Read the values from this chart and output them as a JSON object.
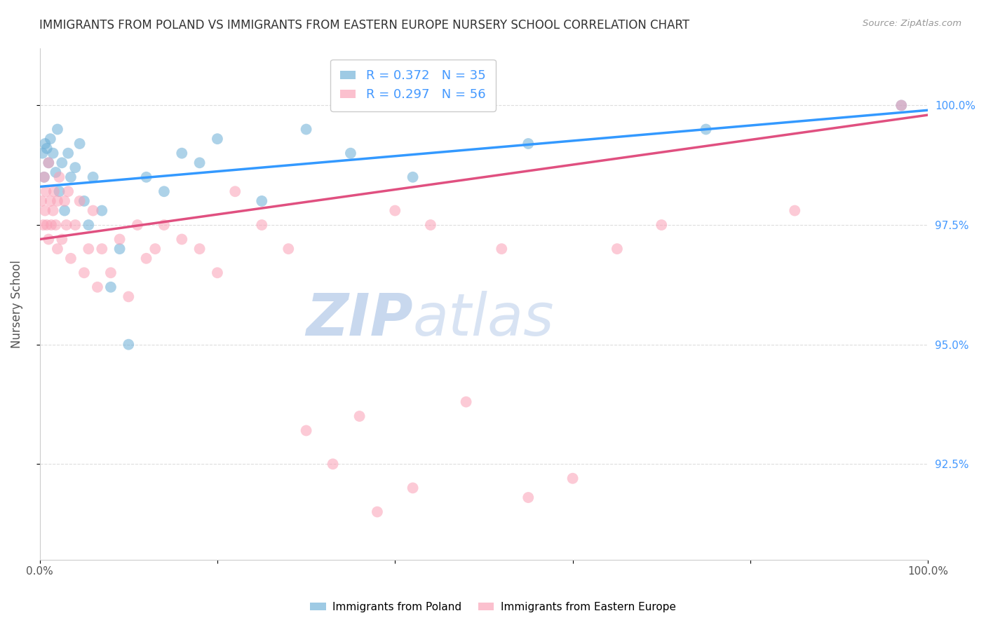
{
  "title": "IMMIGRANTS FROM POLAND VS IMMIGRANTS FROM EASTERN EUROPE NURSERY SCHOOL CORRELATION CHART",
  "source": "Source: ZipAtlas.com",
  "ylabel": "Nursery School",
  "blue_label": "Immigrants from Poland",
  "pink_label": "Immigrants from Eastern Europe",
  "blue_R": 0.372,
  "blue_N": 35,
  "pink_R": 0.297,
  "pink_N": 56,
  "blue_color": "#6baed6",
  "pink_color": "#fa9fb5",
  "blue_line_color": "#3399ff",
  "pink_line_color": "#e05080",
  "xlim": [
    0,
    100
  ],
  "ylim": [
    90.5,
    101.2
  ],
  "yticks": [
    92.5,
    95.0,
    97.5,
    100.0
  ],
  "right_axis_color": "#4499ff",
  "title_color": "#333333",
  "axis_label_color": "#555555",
  "grid_color": "#dddddd",
  "background_color": "#ffffff",
  "watermark_color": "#ddeeff",
  "title_fontsize": 12,
  "legend_fontsize": 13,
  "blue_x": [
    0.3,
    0.5,
    0.6,
    0.8,
    1.0,
    1.2,
    1.5,
    1.8,
    2.0,
    2.2,
    2.5,
    2.8,
    3.2,
    3.5,
    4.0,
    4.5,
    5.0,
    5.5,
    6.0,
    7.0,
    8.0,
    9.0,
    10.0,
    12.0,
    14.0,
    16.0,
    18.0,
    20.0,
    25.0,
    30.0,
    35.0,
    42.0,
    55.0,
    75.0,
    97.0
  ],
  "blue_y": [
    99.0,
    98.5,
    99.2,
    99.1,
    98.8,
    99.3,
    99.0,
    98.6,
    99.5,
    98.2,
    98.8,
    97.8,
    99.0,
    98.5,
    98.7,
    99.2,
    98.0,
    97.5,
    98.5,
    97.8,
    96.2,
    97.0,
    95.0,
    98.5,
    98.2,
    99.0,
    98.8,
    99.3,
    98.0,
    99.5,
    99.0,
    98.5,
    99.2,
    99.5,
    100.0
  ],
  "pink_x": [
    0.2,
    0.4,
    0.5,
    0.6,
    0.7,
    0.8,
    1.0,
    1.0,
    1.2,
    1.3,
    1.5,
    1.6,
    1.8,
    2.0,
    2.0,
    2.2,
    2.5,
    2.8,
    3.0,
    3.2,
    3.5,
    4.0,
    4.5,
    5.0,
    5.5,
    6.0,
    6.5,
    7.0,
    8.0,
    9.0,
    10.0,
    11.0,
    12.0,
    13.0,
    14.0,
    16.0,
    18.0,
    20.0,
    22.0,
    25.0,
    28.0,
    30.0,
    33.0,
    36.0,
    38.0,
    40.0,
    42.0,
    44.0,
    48.0,
    52.0,
    55.0,
    60.0,
    65.0,
    70.0,
    85.0,
    97.0
  ],
  "pink_y": [
    98.0,
    97.5,
    98.5,
    97.8,
    98.2,
    97.5,
    98.8,
    97.2,
    98.0,
    97.5,
    97.8,
    98.2,
    97.5,
    98.0,
    97.0,
    98.5,
    97.2,
    98.0,
    97.5,
    98.2,
    96.8,
    97.5,
    98.0,
    96.5,
    97.0,
    97.8,
    96.2,
    97.0,
    96.5,
    97.2,
    96.0,
    97.5,
    96.8,
    97.0,
    97.5,
    97.2,
    97.0,
    96.5,
    98.2,
    97.5,
    97.0,
    93.2,
    92.5,
    93.5,
    91.5,
    97.8,
    92.0,
    97.5,
    93.8,
    97.0,
    91.8,
    92.2,
    97.0,
    97.5,
    97.8,
    100.0
  ]
}
